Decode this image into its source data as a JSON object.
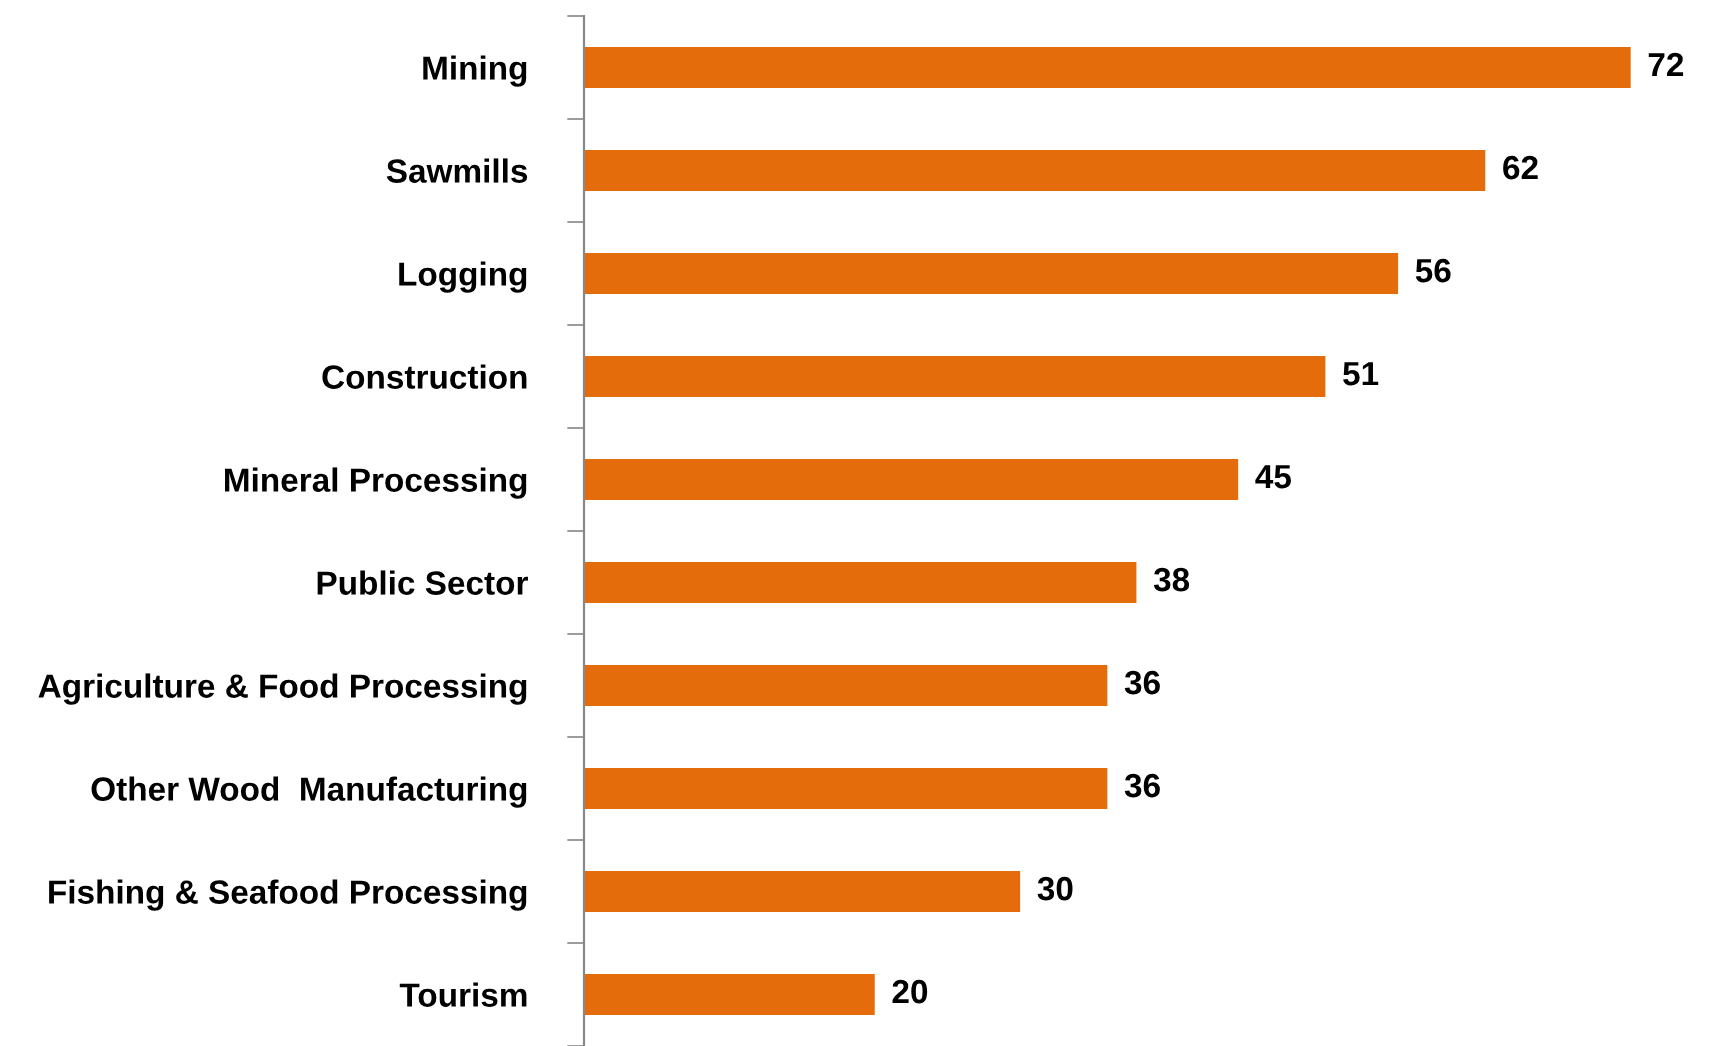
{
  "chart_data": {
    "type": "bar",
    "orientation": "horizontal",
    "categories": [
      "Mining",
      "Sawmills",
      "Logging",
      "Construction",
      "Mineral Processing",
      "Public Sector",
      "Agriculture & Food Processing",
      "Other Wood  Manufacturing",
      "Fishing & Seafood Processing",
      "Tourism"
    ],
    "values": [
      72,
      62,
      56,
      51,
      45,
      38,
      36,
      36,
      30,
      20
    ],
    "color": "#e46c0a",
    "data_labels": true,
    "grid": false,
    "legend": false
  }
}
